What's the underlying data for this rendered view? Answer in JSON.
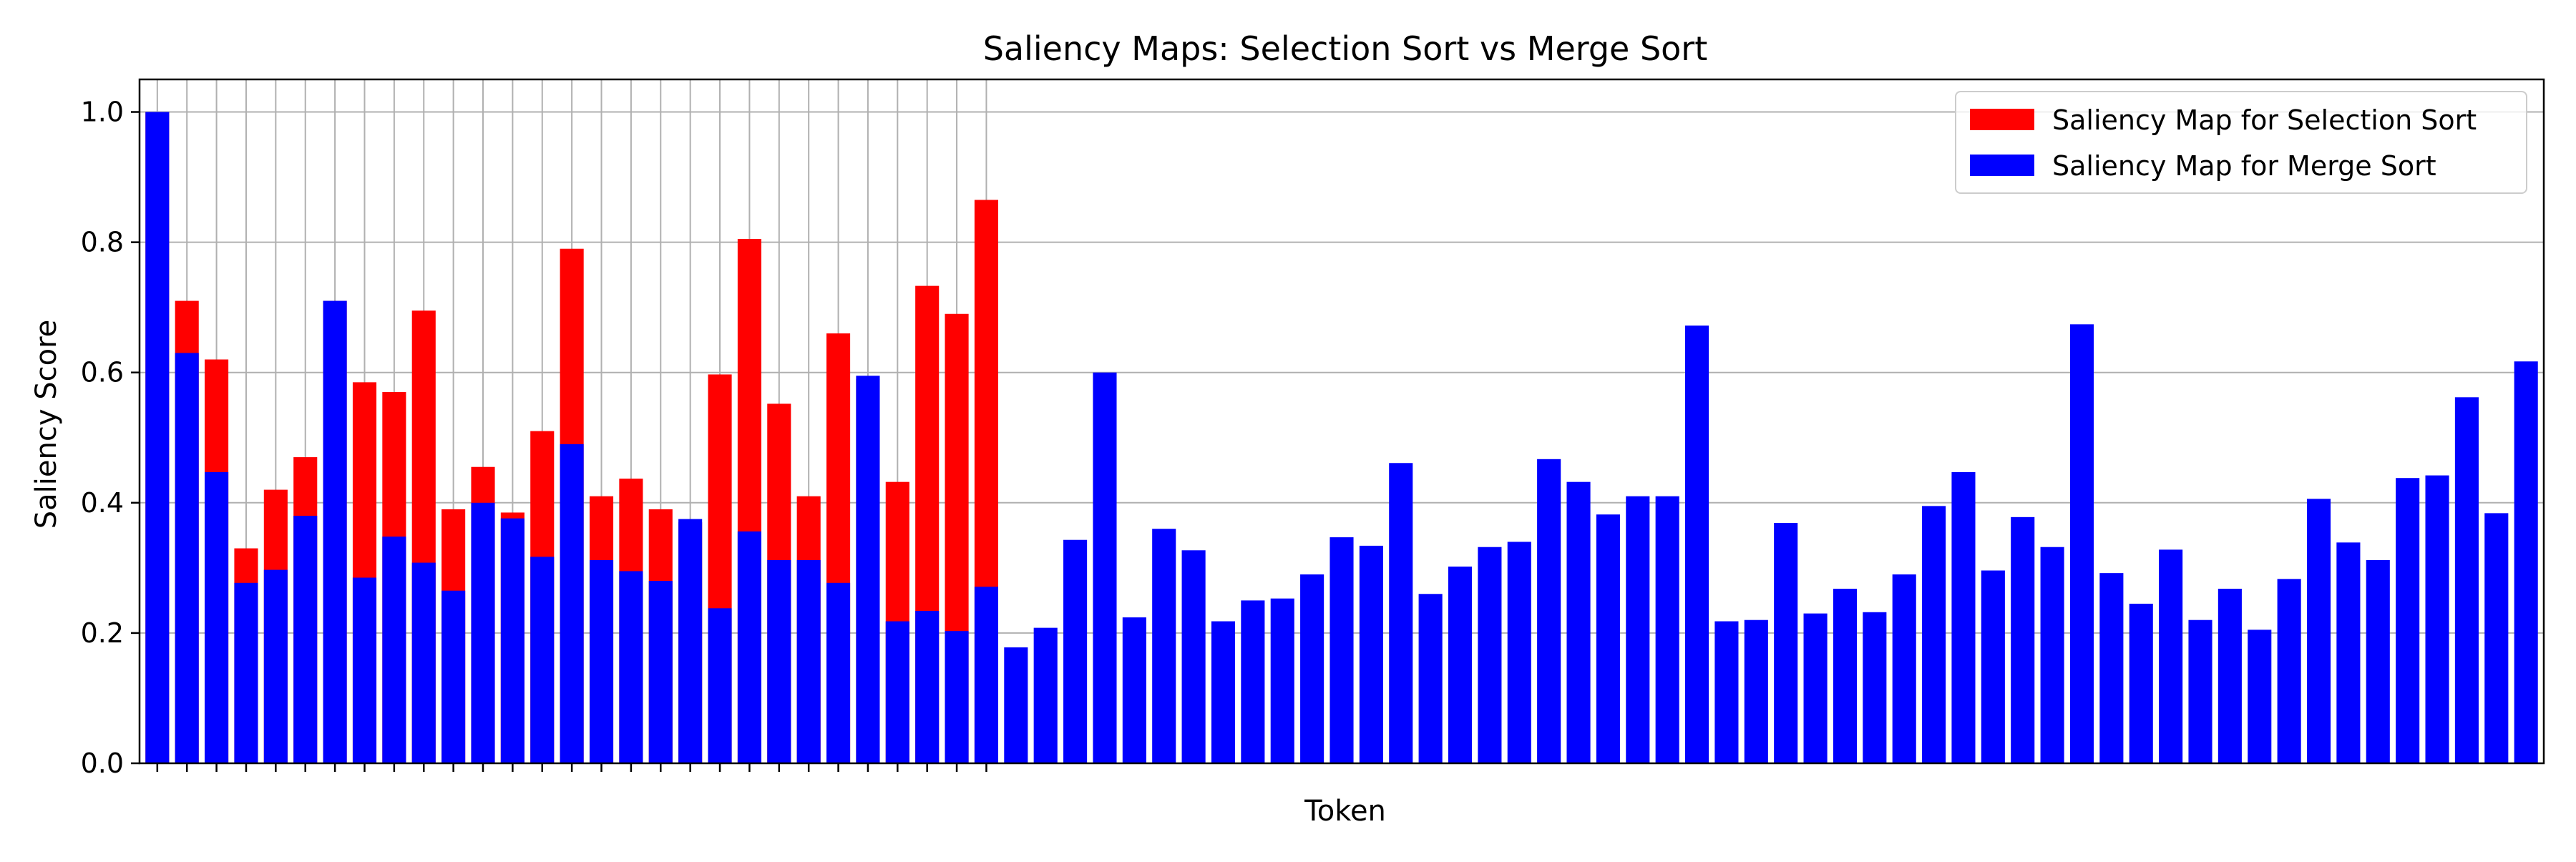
{
  "chart_data": {
    "type": "bar",
    "title": "Saliency Maps: Selection Sort vs Merge Sort",
    "xlabel": "Token",
    "ylabel": "Saliency Score",
    "ylim": [
      0,
      1.05
    ],
    "yticks": [
      0.0,
      0.2,
      0.4,
      0.6,
      0.8,
      1.0
    ],
    "ytick_labels": [
      "0.0",
      "0.2",
      "0.4",
      "0.6",
      "0.8",
      "1.0"
    ],
    "grid": true,
    "legend_position": "top-right",
    "x_tick_labels_visible": false,
    "series": [
      {
        "name": "Saliency Map for Selection Sort",
        "color": "#ff0000",
        "values": [
          1.0,
          0.71,
          0.62,
          0.33,
          0.42,
          0.47,
          0.71,
          0.585,
          0.57,
          0.695,
          0.39,
          0.455,
          0.385,
          0.51,
          0.79,
          0.41,
          0.437,
          0.39,
          0.37,
          0.597,
          0.805,
          0.552,
          0.41,
          0.66,
          0.59,
          0.432,
          0.733,
          0.69,
          0.865
        ]
      },
      {
        "name": "Saliency Map for Merge Sort",
        "color": "#0000ff",
        "values": [
          1.0,
          0.63,
          0.447,
          0.277,
          0.297,
          0.38,
          0.71,
          0.285,
          0.348,
          0.308,
          0.265,
          0.4,
          0.376,
          0.317,
          0.49,
          0.312,
          0.295,
          0.28,
          0.375,
          0.238,
          0.356,
          0.312,
          0.312,
          0.277,
          0.595,
          0.218,
          0.234,
          0.203,
          0.271,
          0.178,
          0.208,
          0.343,
          0.6,
          0.224,
          0.36,
          0.327,
          0.218,
          0.25,
          0.253,
          0.29,
          0.347,
          0.334,
          0.461,
          0.26,
          0.302,
          0.332,
          0.34,
          0.467,
          0.432,
          0.382,
          0.41,
          0.41,
          0.672,
          0.218,
          0.22,
          0.369,
          0.23,
          0.268,
          0.232,
          0.29,
          0.395,
          0.447,
          0.296,
          0.378,
          0.332,
          0.674,
          0.292,
          0.245,
          0.328,
          0.22,
          0.268,
          0.205,
          0.283,
          0.406,
          0.339,
          0.312,
          0.438,
          0.442,
          0.562,
          0.384,
          0.617
        ]
      }
    ]
  }
}
